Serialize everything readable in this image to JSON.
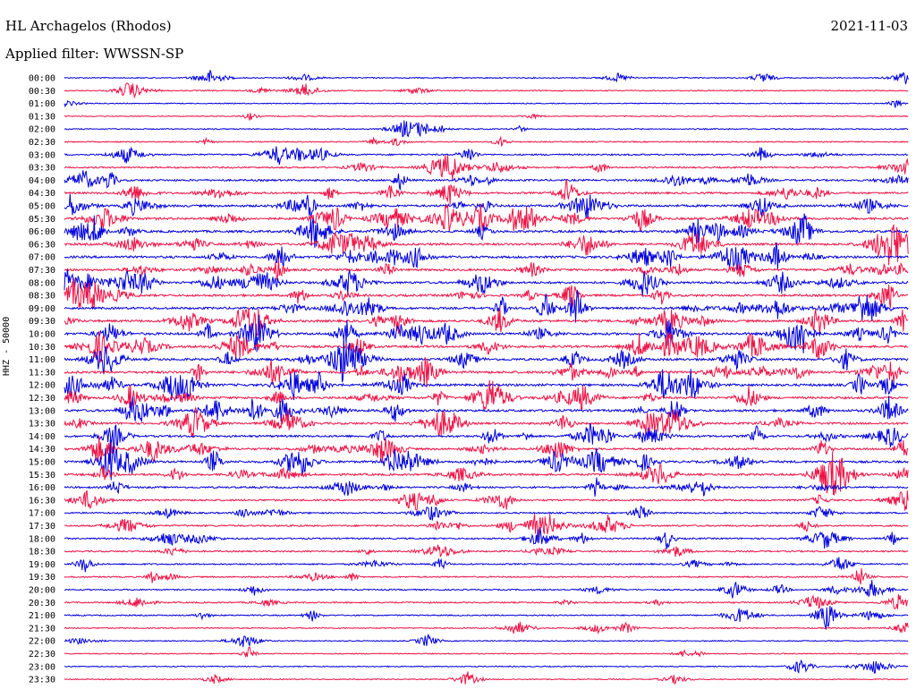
{
  "header": {
    "station": "HL Archagelos (Rhodos)",
    "date": "2021-11-03",
    "filter": "Applied filter: WWSSN-SP"
  },
  "chart_data": {
    "type": "line",
    "title": "HL Archagelos (Rhodos)",
    "ylabel": "HHZ - 50000",
    "xlabel": "",
    "grid": false,
    "legend": "none",
    "colors": {
      "even": "#0000dd",
      "odd": "#ee1144"
    },
    "row_labels": [
      "00:00",
      "00:30",
      "01:00",
      "01:30",
      "02:00",
      "02:30",
      "03:00",
      "03:30",
      "04:00",
      "04:30",
      "05:00",
      "05:30",
      "06:00",
      "06:30",
      "07:00",
      "07:30",
      "08:00",
      "08:30",
      "09:00",
      "09:30",
      "10:00",
      "10:30",
      "11:00",
      "11:30",
      "12:00",
      "12:30",
      "13:00",
      "13:30",
      "14:00",
      "14:30",
      "15:00",
      "15:30",
      "16:00",
      "16:30",
      "17:00",
      "17:30",
      "18:00",
      "18:30",
      "19:00",
      "19:30",
      "20:00",
      "20:30",
      "21:00",
      "21:30",
      "22:00",
      "22:30",
      "23:00",
      "23:30"
    ],
    "activity_level": [
      0.5,
      0.5,
      0.3,
      0.3,
      0.5,
      0.5,
      1.0,
      1.0,
      1.4,
      1.4,
      1.8,
      1.8,
      1.9,
      1.8,
      1.9,
      1.7,
      1.8,
      1.7,
      1.8,
      1.9,
      2.0,
      1.9,
      2.0,
      2.0,
      2.0,
      1.8,
      2.0,
      1.6,
      1.6,
      1.6,
      1.8,
      1.6,
      1.3,
      1.2,
      1.0,
      1.1,
      1.0,
      0.9,
      0.9,
      0.8,
      0.8,
      0.8,
      0.7,
      0.5,
      0.4,
      0.4,
      0.4,
      0.4
    ],
    "major_events": [
      {
        "row": "00:00",
        "minute": 8.5,
        "amplitude": 0.7
      },
      {
        "row": "00:30",
        "minute": 12.5,
        "amplitude": 0.7
      },
      {
        "row": "09:30",
        "minute": 21.5,
        "amplitude": 3.5
      },
      {
        "row": "10:00",
        "minute": 21.5,
        "amplitude": 3.0
      },
      {
        "row": "10:30",
        "minute": 21.5,
        "amplitude": 2.5
      },
      {
        "row": "14:30",
        "minute": 17.5,
        "amplitude": 2.5
      },
      {
        "row": "15:00",
        "minute": 17.5,
        "amplitude": 2.5
      },
      {
        "row": "21:00",
        "minute": 28.7,
        "amplitude": 1.2
      }
    ]
  }
}
